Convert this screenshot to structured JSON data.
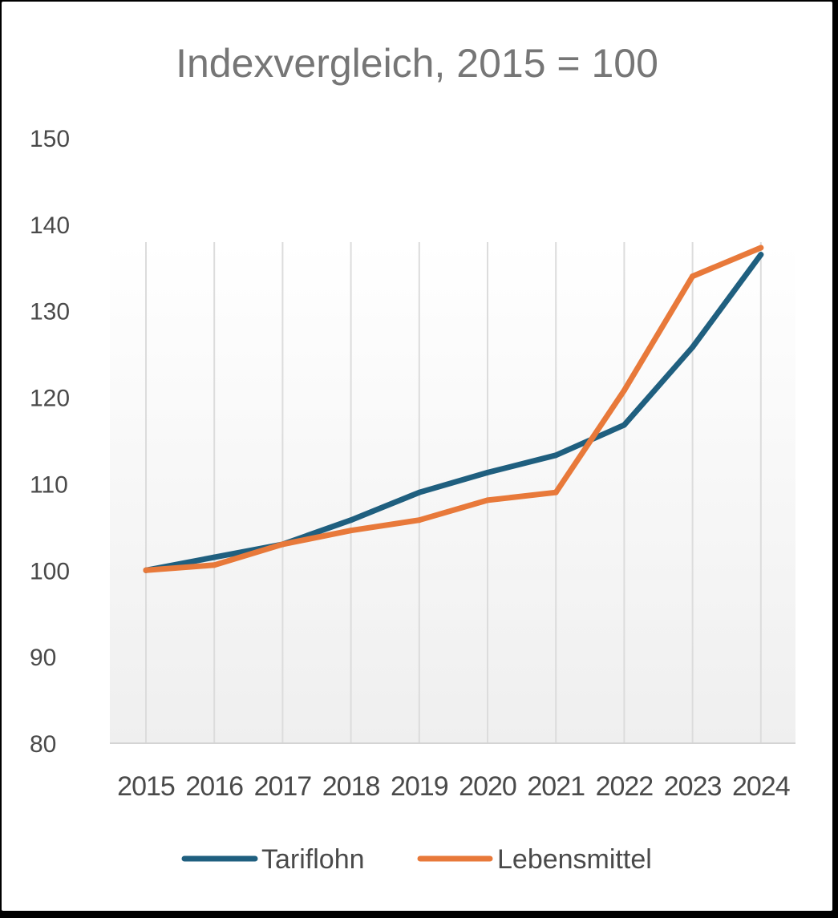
{
  "chart_data": {
    "type": "line",
    "title": "Indexvergleich, 2015 = 100",
    "xlabel": "",
    "ylabel": "",
    "categories": [
      "2015",
      "2016",
      "2017",
      "2018",
      "2019",
      "2020",
      "2021",
      "2022",
      "2023",
      "2024"
    ],
    "ylim": [
      80,
      150
    ],
    "yticks": [
      "80",
      "90",
      "100",
      "110",
      "120",
      "130",
      "140",
      "150"
    ],
    "grid": "vertical",
    "legend": "bottom",
    "series": [
      {
        "name": "Tariflohn",
        "color": "#1f5f7f",
        "values": [
          100.0,
          101.5,
          103.0,
          105.8,
          109.0,
          111.3,
          113.3,
          116.8,
          125.8,
          136.5
        ]
      },
      {
        "name": "Lebensmittel",
        "color": "#e8793a",
        "values": [
          100.0,
          100.6,
          103.0,
          104.6,
          105.8,
          108.1,
          109.0,
          120.8,
          134.0,
          137.3
        ]
      }
    ]
  }
}
